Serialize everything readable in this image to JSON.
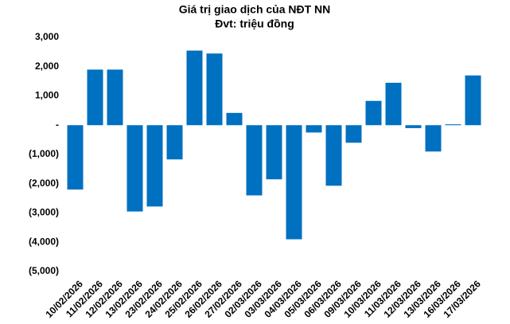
{
  "chart_data": {
    "type": "bar",
    "title": "Giá trị giao dịch của NĐT NN",
    "subtitle": "Đvt: triệu đồng",
    "categories": [
      "10/02/2026",
      "11/02/2026",
      "12/02/2026",
      "13/02/2026",
      "23/02/2026",
      "24/02/2026",
      "25/02/2026",
      "26/02/2026",
      "27/02/2026",
      "02/03/2026",
      "03/03/2026",
      "04/03/2026",
      "05/03/2026",
      "06/03/2026",
      "09/03/2026",
      "10/03/2026",
      "11/03/2026",
      "12/03/2026",
      "13/03/2026",
      "16/03/2026",
      "17/03/2026"
    ],
    "values": [
      -2200,
      1900,
      1900,
      -2950,
      -2780,
      -1170,
      2550,
      2450,
      420,
      -2400,
      -1850,
      -3900,
      -250,
      -2070,
      -600,
      830,
      1450,
      -100,
      -900,
      30,
      1700
    ],
    "color": "#0070c0",
    "ylim": [
      -5000,
      3000
    ],
    "yticks": [
      {
        "value": -5000,
        "label": "(5,000)"
      },
      {
        "value": -4000,
        "label": "(4,000)"
      },
      {
        "value": -3000,
        "label": "(3,000)"
      },
      {
        "value": -2000,
        "label": "(2,000)"
      },
      {
        "value": -1000,
        "label": "(1,000)"
      },
      {
        "value": 0,
        "label": "-"
      },
      {
        "value": 1000,
        "label": "1,000"
      },
      {
        "value": 2000,
        "label": "2,000"
      },
      {
        "value": 3000,
        "label": "3,000"
      }
    ],
    "grid": false
  }
}
